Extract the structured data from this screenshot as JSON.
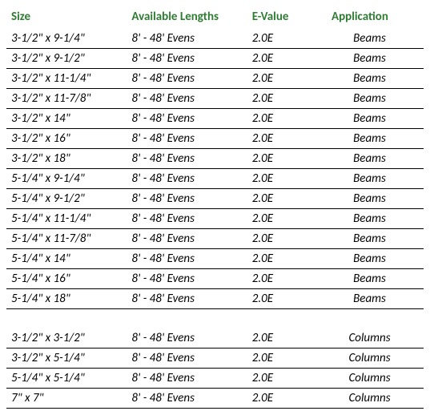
{
  "header_color": "#2e7d32",
  "row_border_color": "#000000",
  "columns": {
    "size": "Size",
    "lengths": "Available Lengths",
    "evalue": "E-Value",
    "application": "Application"
  },
  "beams": [
    {
      "size": "3-1/2\" x 9-1/4\"",
      "lengths": "8' - 48' Evens",
      "evalue": "2.0E",
      "application": "Beams"
    },
    {
      "size": "3-1/2\" x 9-1/2\"",
      "lengths": "8' - 48' Evens",
      "evalue": "2.0E",
      "application": "Beams"
    },
    {
      "size": "3-1/2\" x 11-1/4\"",
      "lengths": "8' - 48' Evens",
      "evalue": "2.0E",
      "application": "Beams"
    },
    {
      "size": "3-1/2\" x 11-7/8\"",
      "lengths": "8' - 48' Evens",
      "evalue": "2.0E",
      "application": "Beams"
    },
    {
      "size": "3-1/2\" x 14\"",
      "lengths": "8' - 48' Evens",
      "evalue": "2.0E",
      "application": "Beams"
    },
    {
      "size": "3-1/2\" x 16\"",
      "lengths": "8' - 48' Evens",
      "evalue": "2.0E",
      "application": "Beams"
    },
    {
      "size": "3-1/2\" x 18\"",
      "lengths": "8' - 48' Evens",
      "evalue": "2.0E",
      "application": "Beams"
    },
    {
      "size": "5-1/4\" x 9-1/4\"",
      "lengths": "8' - 48' Evens",
      "evalue": "2.0E",
      "application": "Beams"
    },
    {
      "size": "5-1/4\" x 9-1/2\"",
      "lengths": "8' - 48' Evens",
      "evalue": "2.0E",
      "application": "Beams"
    },
    {
      "size": "5-1/4\" x 11-1/4\"",
      "lengths": "8' - 48' Evens",
      "evalue": "2.0E",
      "application": "Beams"
    },
    {
      "size": "5-1/4\" x 11-7/8\"",
      "lengths": "8' - 48' Evens",
      "evalue": "2.0E",
      "application": "Beams"
    },
    {
      "size": "5-1/4\" x 14\"",
      "lengths": "8' - 48' Evens",
      "evalue": "2.0E",
      "application": "Beams"
    },
    {
      "size": "5-1/4\" x 16\"",
      "lengths": "8' - 48' Evens",
      "evalue": "2.0E",
      "application": "Beams"
    },
    {
      "size": "5-1/4\" x 18\"",
      "lengths": "8' - 48' Evens",
      "evalue": "2.0E",
      "application": "Beams"
    }
  ],
  "columns_rows": [
    {
      "size": "3-1/2\" x 3-1/2\"",
      "lengths": "8' - 48' Evens",
      "evalue": "2.0E",
      "application": "Columns"
    },
    {
      "size": "3-1/2\" x 5-1/4\"",
      "lengths": "8' - 48' Evens",
      "evalue": "2.0E",
      "application": "Columns"
    },
    {
      "size": "5-1/4\" x 5-1/4\"",
      "lengths": "8' - 48' Evens",
      "evalue": "2.0E",
      "application": "Columns"
    },
    {
      "size": "7\" x 7\"",
      "lengths": "8' - 48' Evens",
      "evalue": "2.0E",
      "application": "Columns"
    }
  ]
}
